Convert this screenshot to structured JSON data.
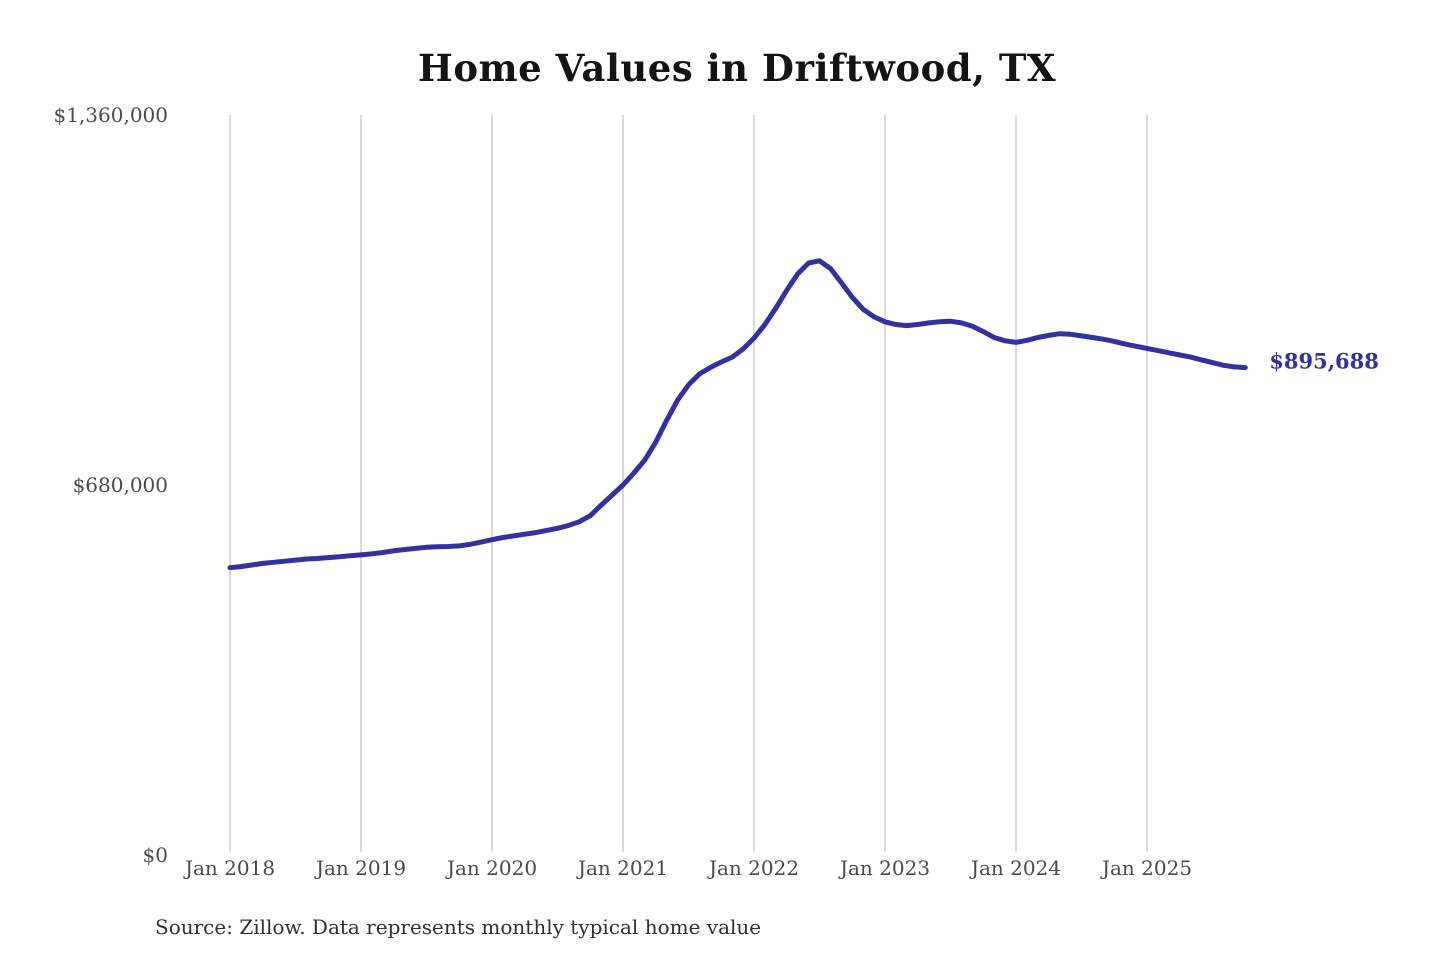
{
  "title": "Home Values in Driftwood, TX",
  "source_note": "Source: Zillow. Data represents monthly typical home value",
  "colors": {
    "line": "#35309f",
    "end_label": "#35309f",
    "grid": "#c6c6c6",
    "axis_text": "#4a4a4a",
    "title_text": "#141414",
    "source_text": "#303030",
    "background": "#ffffff"
  },
  "chart_data": {
    "type": "line",
    "title": "Home Values in Driftwood, TX",
    "xlabel": "",
    "ylabel": "",
    "ylim": [
      0,
      1360000
    ],
    "grid": "vertical-only",
    "legend": "none",
    "y_ticks": [
      {
        "label": "$0",
        "value": 0
      },
      {
        "label": "$680,000",
        "value": 680000
      },
      {
        "label": "$1,360,000",
        "value": 1360000
      }
    ],
    "x_ticks": [
      {
        "label": "Jan 2018",
        "month_index": 0
      },
      {
        "label": "Jan 2019",
        "month_index": 12
      },
      {
        "label": "Jan 2020",
        "month_index": 24
      },
      {
        "label": "Jan 2021",
        "month_index": 36
      },
      {
        "label": "Jan 2022",
        "month_index": 48
      },
      {
        "label": "Jan 2023",
        "month_index": 60
      },
      {
        "label": "Jan 2024",
        "month_index": 72
      },
      {
        "label": "Jan 2025",
        "month_index": 84
      }
    ],
    "series": [
      {
        "name": "Monthly typical home value",
        "start_month": "2018-01",
        "frequency": "monthly",
        "values": [
          528000,
          530000,
          533000,
          536000,
          538000,
          540000,
          542000,
          544000,
          545000,
          546500,
          548000,
          550000,
          551500,
          553500,
          556000,
          559000,
          561500,
          563500,
          565500,
          566500,
          567000,
          568000,
          571000,
          575000,
          579500,
          583500,
          586500,
          589500,
          592500,
          596500,
          600500,
          605500,
          612500,
          623500,
          643000,
          661500,
          680000,
          702000,
          726000,
          759000,
          799000,
          836000,
          864000,
          884000,
          896000,
          906000,
          915000,
          930000,
          950000,
          975000,
          1005000,
          1038000,
          1068000,
          1088000,
          1092000,
          1078000,
          1052000,
          1025000,
          1003000,
          989000,
          980000,
          975000,
          973000,
          975000,
          978000,
          980000,
          981000,
          978000,
          972000,
          962000,
          951000,
          945000,
          942000,
          946000,
          951000,
          955000,
          958000,
          957000,
          954000,
          951000,
          948000,
          944000,
          939000,
          935000,
          931000,
          927000,
          923000,
          919000,
          915000,
          910000,
          905000,
          900000,
          897000,
          895688
        ]
      }
    ],
    "last_point": {
      "date": "2025-10",
      "value": 895688,
      "label": "$895,688"
    }
  }
}
